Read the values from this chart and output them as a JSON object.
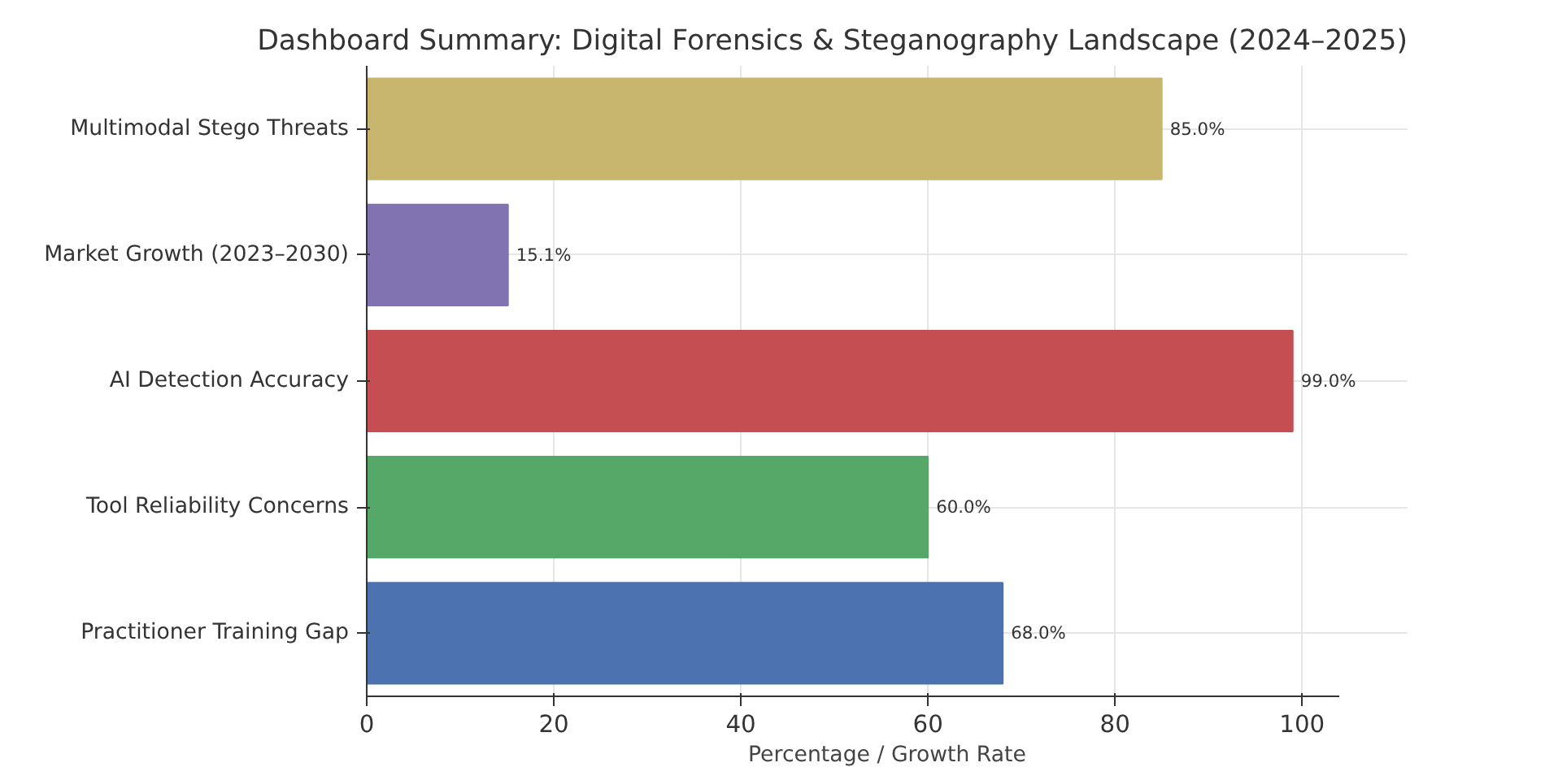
{
  "chart_data": {
    "type": "bar",
    "orientation": "horizontal",
    "title": "Dashboard Summary: Digital Forensics & Steganography Landscape (2024–2025)",
    "xlabel": "Percentage / Growth Rate",
    "categories": [
      "Multimodal Stego Threats",
      "Market Growth (2023–2030)",
      "AI Detection Accuracy",
      "Tool Reliability Concerns",
      "Practitioner Training Gap"
    ],
    "values": [
      85.0,
      15.1,
      99.0,
      60.0,
      68.0
    ],
    "colors": [
      "#c8b56e",
      "#8172b2",
      "#c44e52",
      "#55a868",
      "#4c72b0"
    ],
    "value_labels": [
      "85.0%",
      "15.1%",
      "99.0%",
      "60.0%",
      "68.0%"
    ],
    "xlim": [
      0,
      104
    ],
    "xticks": [
      0,
      20,
      40,
      60,
      80,
      100
    ],
    "grid": true
  }
}
